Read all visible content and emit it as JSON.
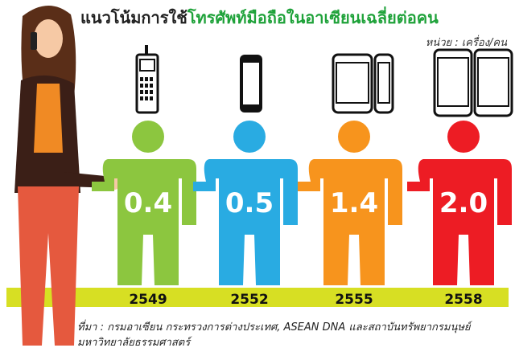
{
  "title_part1": "แนวโน้มการใช้",
  "title_part2": "โทรศัพท์มือถือในอาเซียนเฉลี่ยต่อคน",
  "unit_label": "หน่วย : เครื่อง/คน",
  "source_text": "ที่มา : กรมอาเซียน กระทรวงการต่างประเทศ, ASEAN DNA และสถาบันทรัพยากรมนุษย์ มหาวิทยาลัยธรรมศาสตร์",
  "colors": {
    "green": "#8cc63f",
    "blue": "#29abe2",
    "orange": "#f7941d",
    "red": "#ed1c24",
    "baseline": "#d7df23",
    "title_green": "#1fa23a"
  },
  "chart_data": {
    "type": "bar",
    "categories": [
      "2549",
      "2552",
      "2555",
      "2558"
    ],
    "values": [
      0.4,
      0.5,
      1.4,
      2.0
    ],
    "value_labels": [
      "0.4",
      "0.5",
      "1.4",
      "2.0"
    ],
    "phone_icons": [
      "feature-phone-icon",
      "smartphone-icon",
      "two-smartphones-icon",
      "two-large-smartphones-icon"
    ],
    "title": "แนวโน้มการใช้โทรศัพท์มือถือในอาเซียนเฉลี่ยต่อคน",
    "unit": "หน่วย : เครื่อง/คน"
  }
}
